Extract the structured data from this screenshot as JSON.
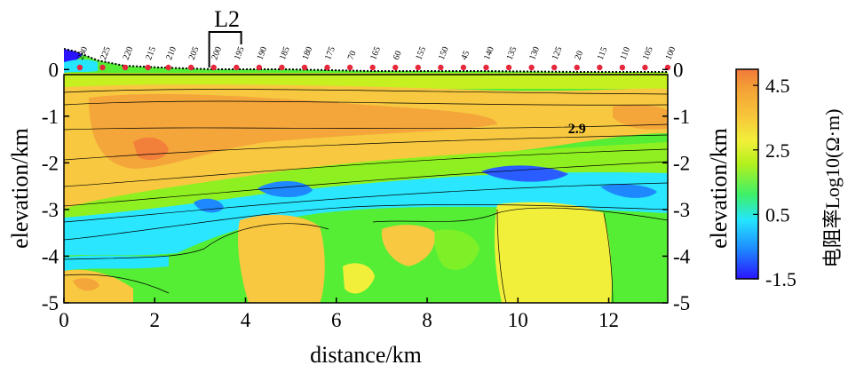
{
  "chart_data": {
    "type": "heatmap",
    "title": "",
    "xlabel": "distance/km",
    "ylabel": "elevation/km",
    "ylabel_right": "elevation/km",
    "xlim": [
      0,
      13.3
    ],
    "ylim": [
      -5,
      0.5
    ],
    "x_ticks": [
      0,
      2,
      4,
      6,
      8,
      10,
      12
    ],
    "y_ticks": [
      0,
      -1,
      -2,
      -3,
      -4,
      -5
    ],
    "colorbar": {
      "label": "电阻率Log10(Ω·m)",
      "range": [
        -1.5,
        5
      ],
      "ticks": [
        4.5,
        2.5,
        0.5,
        -1.5
      ],
      "colors": [
        "#2a14ff",
        "#1e88ff",
        "#25e5ff",
        "#3cf06a",
        "#b4f01c",
        "#f2ef3a",
        "#f7c43a",
        "#f4a436",
        "#f2793a"
      ]
    },
    "profile_marker": {
      "label": "L2",
      "x": 3.2
    },
    "contour_label": {
      "text": "2.9",
      "x": 11.3,
      "y": -1.25
    },
    "stations": [
      {
        "label": "230",
        "x": 0.35
      },
      {
        "label": "225",
        "x": 0.85
      },
      {
        "label": "220",
        "x": 1.35
      },
      {
        "label": "215",
        "x": 1.85
      },
      {
        "label": "210",
        "x": 2.3
      },
      {
        "label": "205",
        "x": 2.8
      },
      {
        "label": "200",
        "x": 3.3
      },
      {
        "label": "195",
        "x": 3.8
      },
      {
        "label": "190",
        "x": 4.3
      },
      {
        "label": "185",
        "x": 4.8
      },
      {
        "label": "180",
        "x": 5.3
      },
      {
        "label": "175",
        "x": 5.8
      },
      {
        "label": "70",
        "x": 6.3
      },
      {
        "label": "165",
        "x": 6.8
      },
      {
        "label": "60",
        "x": 7.3
      },
      {
        "label": "155",
        "x": 7.8
      },
      {
        "label": "150",
        "x": 8.3
      },
      {
        "label": "45",
        "x": 8.8
      },
      {
        "label": "140",
        "x": 9.3
      },
      {
        "label": "135",
        "x": 9.8
      },
      {
        "label": "130",
        "x": 10.3
      },
      {
        "label": "125",
        "x": 10.8
      },
      {
        "label": "20",
        "x": 11.3
      },
      {
        "label": "115",
        "x": 11.8
      },
      {
        "label": "110",
        "x": 12.3
      },
      {
        "label": "105",
        "x": 12.8
      },
      {
        "label": "100",
        "x": 13.3
      }
    ]
  }
}
